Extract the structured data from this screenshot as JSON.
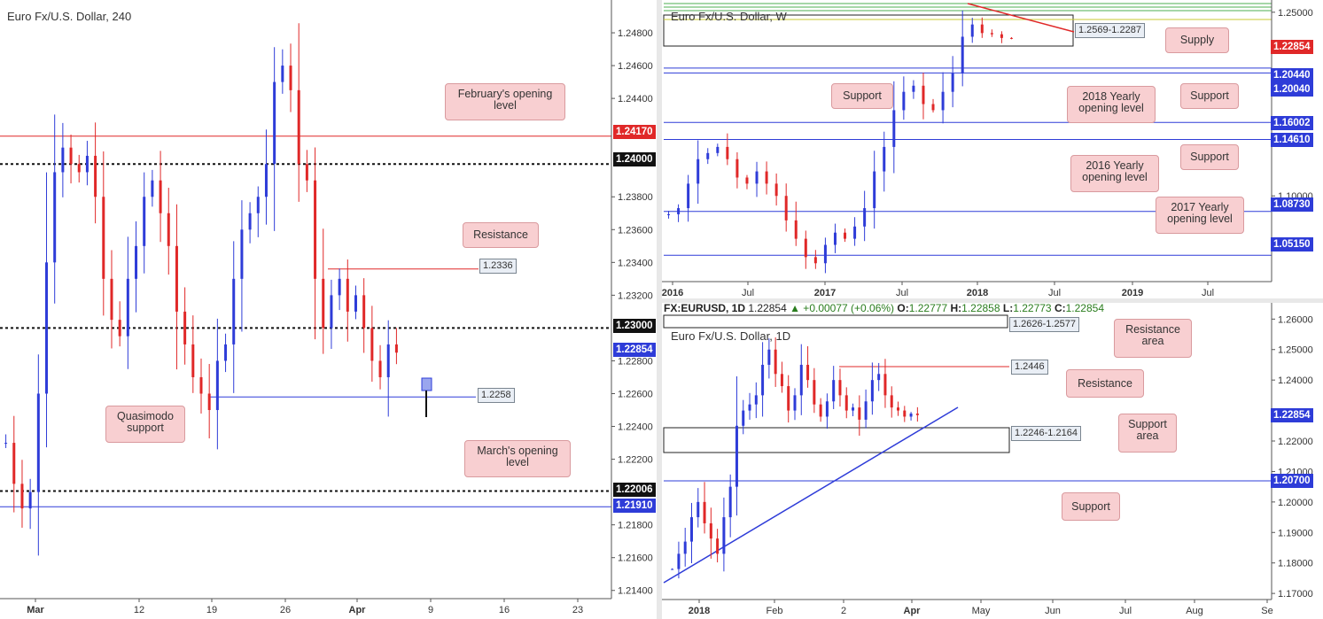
{
  "chart_data": [
    {
      "type": "line",
      "title": "Euro Fx/U.S. Dollar, 240",
      "x_tick_labels": [
        "Mar",
        "12",
        "19",
        "26",
        "Apr",
        "9",
        "16",
        "23"
      ],
      "y_tick_labels": [
        "1.24800",
        "1.24600",
        "1.24400",
        "1.23800",
        "1.23600",
        "1.23400",
        "1.23200",
        "1.22800",
        "1.22600",
        "1.22400",
        "1.22200",
        "1.21800",
        "1.21600",
        "1.21400"
      ],
      "ylim": [
        1.2135,
        1.25
      ],
      "price_tags": [
        {
          "label": "1.24170",
          "y": 1.2417,
          "color": "#e02828"
        },
        {
          "label": "1.24000",
          "y": 1.24,
          "color": "#111111"
        },
        {
          "label": "1.23000",
          "y": 1.23,
          "color": "#111111"
        },
        {
          "label": "1.22854",
          "y": 1.22854,
          "color": "#2e3cd8"
        },
        {
          "label": "1.22006",
          "y": 1.22006,
          "color": "#111111"
        },
        {
          "label": "1.21910",
          "y": 1.2191,
          "color": "#2e3cd8"
        }
      ],
      "level_boxes": [
        {
          "label": "1.2336",
          "y": 1.2336
        },
        {
          "label": "1.2258",
          "y": 1.2258
        }
      ],
      "callouts": [
        {
          "text": "February's opening level"
        },
        {
          "text": "Resistance"
        },
        {
          "text": "Quasimodo support"
        },
        {
          "text": "March's opening level"
        }
      ],
      "closes": [
        1.223,
        1.2205,
        1.219,
        1.22,
        1.226,
        1.234,
        1.2395,
        1.241,
        1.24,
        1.2395,
        1.2405,
        1.238,
        1.233,
        1.2305,
        1.2295,
        1.233,
        1.235,
        1.238,
        1.239,
        1.237,
        1.235,
        1.231,
        1.229,
        1.227,
        1.226,
        1.225,
        1.228,
        1.229,
        1.233,
        1.236,
        1.237,
        1.238,
        1.24,
        1.245,
        1.246,
        1.2445,
        1.24,
        1.239,
        1.233,
        1.23,
        1.232,
        1.233,
        1.231,
        1.232,
        1.23,
        1.228,
        1.227,
        1.229,
        1.2285
      ]
    },
    {
      "type": "line",
      "title": "Euro Fx/U.S. Dollar, W",
      "x_tick_labels": [
        "2016",
        "Jul",
        "2017",
        "Jul",
        "2018",
        "Jul",
        "2019",
        "Jul"
      ],
      "y_tick_labels": [
        "1.25000",
        "1.10000"
      ],
      "ylim": [
        1.03,
        1.26
      ],
      "price_tags": [
        {
          "label": "1.22854",
          "y": 1.22854,
          "color": "#e02828"
        },
        {
          "label": "1.20440",
          "y": 1.2044,
          "color": "#2e3cd8"
        },
        {
          "label": "1.20040",
          "y": 1.2004,
          "color": "#2e3cd8"
        },
        {
          "label": "1.16002",
          "y": 1.16002,
          "color": "#2e3cd8"
        },
        {
          "label": "1.14610",
          "y": 1.1461,
          "color": "#2e3cd8"
        },
        {
          "label": "1.08730",
          "y": 1.0873,
          "color": "#2e3cd8"
        },
        {
          "label": "1.05150",
          "y": 1.0515,
          "color": "#2e3cd8"
        }
      ],
      "level_boxes": [
        {
          "label": "1.2569-1.2287"
        }
      ],
      "callouts": [
        {
          "text": "Supply"
        },
        {
          "text": "Support"
        },
        {
          "text": "2018 Yearly opening level"
        },
        {
          "text": "Support"
        },
        {
          "text": "Support"
        },
        {
          "text": "2016 Yearly opening level"
        },
        {
          "text": "2017 Yearly opening level"
        }
      ],
      "closes": [
        1.085,
        1.09,
        1.11,
        1.13,
        1.135,
        1.14,
        1.13,
        1.115,
        1.11,
        1.12,
        1.11,
        1.1,
        1.08,
        1.065,
        1.05,
        1.045,
        1.06,
        1.07,
        1.065,
        1.075,
        1.09,
        1.12,
        1.14,
        1.17,
        1.185,
        1.19,
        1.175,
        1.17,
        1.185,
        1.2,
        1.23,
        1.24,
        1.233,
        1.232,
        1.229,
        1.2285
      ]
    },
    {
      "type": "line",
      "title": "Euro Fx/U.S. Dollar, 1D",
      "x_tick_labels": [
        "2018",
        "Feb",
        "2",
        "Apr",
        "May",
        "Jun",
        "Jul",
        "Aug",
        "Se"
      ],
      "y_tick_labels": [
        "1.26000",
        "1.25000",
        "1.24000",
        "1.22000",
        "1.21000",
        "1.20000",
        "1.19000",
        "1.18000",
        "1.17000"
      ],
      "ylim": [
        1.168,
        1.263
      ],
      "price_tags": [
        {
          "label": "1.22854",
          "y": 1.22854,
          "color": "#2e3cd8"
        },
        {
          "label": "1.20700",
          "y": 1.207,
          "color": "#2e3cd8"
        }
      ],
      "level_boxes": [
        {
          "label": "1.2626-1.2577"
        },
        {
          "label": "1.2446"
        },
        {
          "label": "1.2246-1.2164"
        }
      ],
      "callouts": [
        {
          "text": "Resistance area"
        },
        {
          "text": "Resistance"
        },
        {
          "text": "Support area"
        },
        {
          "text": "Support"
        }
      ],
      "info_bar": {
        "symbol": "FX:EURUSD, 1D",
        "close": "1.22854",
        "change": "▲ +0.00077 (+0.06%)",
        "o_label": "O:",
        "o": "1.22777",
        "h_label": "H:",
        "h": "1.22858",
        "l_label": "L:",
        "l": "1.22773",
        "c_label": "C:",
        "c": "1.22854"
      },
      "closes": [
        1.178,
        1.183,
        1.187,
        1.195,
        1.2,
        1.193,
        1.188,
        1.183,
        1.195,
        1.205,
        1.225,
        1.23,
        1.232,
        1.235,
        1.245,
        1.25,
        1.242,
        1.238,
        1.23,
        1.235,
        1.245,
        1.24,
        1.232,
        1.228,
        1.233,
        1.24,
        1.235,
        1.23,
        1.231,
        1.227,
        1.233,
        1.24,
        1.242,
        1.235,
        1.231,
        1.23,
        1.228,
        1.229,
        1.2285
      ]
    }
  ]
}
